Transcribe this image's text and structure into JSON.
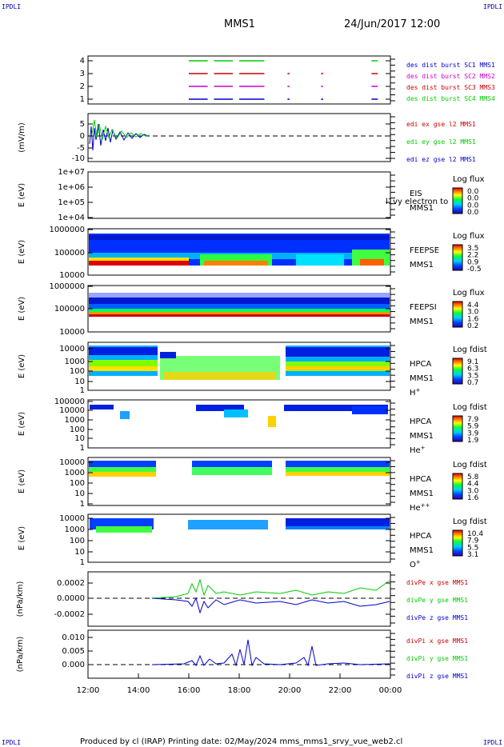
{
  "corner_labels": [
    "IPDLI",
    "IPDLI",
    "IPDLI",
    "IPDLI"
  ],
  "header": {
    "spacecraft": "MMS1",
    "datetime": "24/Jun/2017 12:00"
  },
  "footer": "Produced by cl (IRAP)   Printing date: 02/May/2024   mms_mms1_srvy_vue_web2.cl",
  "colors": {
    "blue": "#0000cc",
    "green": "#00cc00",
    "red": "#cc0000",
    "magenta": "#cc00cc"
  },
  "chart_data": [
    {
      "type": "line",
      "name": "burst-availability",
      "xlim": [
        "12:00",
        "24:00"
      ],
      "yticks": [
        "4",
        "3",
        "2",
        "1"
      ],
      "series": [
        {
          "name": "des dist burst SC1 MMS1",
          "color": "#0000cc",
          "level": 1,
          "intervals": [
            [
              "16:00",
              "16:45"
            ],
            [
              "17:00",
              "17:45"
            ],
            [
              "18:00",
              "19:00"
            ],
            [
              "19:55",
              "20:00"
            ],
            [
              "21:15",
              "21:20"
            ],
            [
              "23:15",
              "23:30"
            ]
          ]
        },
        {
          "name": "des dist burst SC2 MMS2",
          "color": "#cc00cc",
          "level": 2,
          "intervals": [
            [
              "16:00",
              "16:45"
            ],
            [
              "17:00",
              "17:45"
            ],
            [
              "18:00",
              "19:00"
            ],
            [
              "19:55",
              "20:00"
            ],
            [
              "21:15",
              "21:20"
            ],
            [
              "23:15",
              "23:30"
            ]
          ]
        },
        {
          "name": "des dist burst SC3 MMS3",
          "color": "#cc0000",
          "level": 3,
          "intervals": [
            [
              "16:00",
              "16:45"
            ],
            [
              "17:00",
              "17:45"
            ],
            [
              "18:00",
              "19:00"
            ],
            [
              "19:55",
              "20:00"
            ],
            [
              "21:15",
              "21:20"
            ],
            [
              "23:15",
              "23:30"
            ]
          ]
        },
        {
          "name": "des dist burst SC4 MMS4",
          "color": "#00cc00",
          "level": 4,
          "intervals": [
            [
              "16:00",
              "16:45"
            ],
            [
              "17:00",
              "17:45"
            ],
            [
              "18:00",
              "19:00"
            ],
            [
              "23:15",
              "23:30"
            ]
          ]
        }
      ]
    },
    {
      "type": "line",
      "name": "edi-e-field",
      "ylabel": "(mV/m)",
      "ylim": [
        -10,
        7
      ],
      "yticks": [
        "5",
        "0",
        "-5",
        "-10"
      ],
      "series": [
        {
          "name": "edi ex gse l2 MMS1",
          "color": "#cc0000"
        },
        {
          "name": "edi ey gse l2 MMS1",
          "color": "#00cc00"
        },
        {
          "name": "edi ez gse l2 MMS1",
          "color": "#0000cc"
        }
      ],
      "data_interval": [
        "12:00",
        "14:45"
      ]
    },
    {
      "type": "heatmap",
      "name": "eis",
      "ylabel": "E (eV)",
      "yticks": [
        "1e+07",
        "1e+06",
        "1e+05",
        "1e+04"
      ],
      "instrument": [
        "EIS",
        "MMS1"
      ],
      "overlay_text": "l1vy electron to",
      "colorbar": {
        "title": "Log flux",
        "ticks": [
          "0.0",
          "0.0",
          "0.0",
          "0.0"
        ]
      }
    },
    {
      "type": "heatmap",
      "name": "feepse",
      "ylabel": "E (eV)",
      "yticks": [
        "1000000",
        "100000",
        "10000"
      ],
      "instrument": [
        "FEEPSE",
        "MMS1"
      ],
      "colorbar": {
        "title": "Log flux",
        "ticks": [
          "3.5",
          "2.2",
          "0.9",
          "-0.5"
        ]
      }
    },
    {
      "type": "heatmap",
      "name": "feepsi",
      "ylabel": "E (eV)",
      "yticks": [
        "1000000",
        "100000",
        "10000"
      ],
      "instrument": [
        "FEEPSI",
        "MMS1"
      ],
      "colorbar": {
        "title": "Log flux",
        "ticks": [
          "4.4",
          "3.0",
          "1.6",
          "0.2"
        ]
      }
    },
    {
      "type": "heatmap",
      "name": "hpca-h",
      "ylabel": "E (eV)",
      "yticks": [
        "10000",
        "1000",
        "100",
        "10",
        "1"
      ],
      "instrument": [
        "HPCA",
        "MMS1",
        "H"
      ],
      "species_sup": "+",
      "colorbar": {
        "title": "Log fdist",
        "ticks": [
          "9.1",
          "6.3",
          "3.5",
          "0.7"
        ]
      }
    },
    {
      "type": "heatmap",
      "name": "hpca-he",
      "ylabel": "E (eV)",
      "yticks": [
        "100000",
        "10000",
        "1000",
        "100",
        "10",
        "1"
      ],
      "instrument": [
        "HPCA",
        "MMS1",
        "He"
      ],
      "species_sup": "+",
      "colorbar": {
        "title": "Log fdist",
        "ticks": [
          "7.9",
          "5.9",
          "3.9",
          "1.9"
        ]
      }
    },
    {
      "type": "heatmap",
      "name": "hpca-hepp",
      "ylabel": "E (eV)",
      "yticks": [
        "10000",
        "1000",
        "100",
        "10",
        "1"
      ],
      "instrument": [
        "HPCA",
        "MMS1",
        "He"
      ],
      "species_sup": "++",
      "colorbar": {
        "title": "Log fdist",
        "ticks": [
          "5.8",
          "4.4",
          "3.0",
          "1.6"
        ]
      }
    },
    {
      "type": "heatmap",
      "name": "hpca-o",
      "ylabel": "E (eV)",
      "yticks": [
        "10000",
        "1000",
        "100",
        "10",
        "1"
      ],
      "instrument": [
        "HPCA",
        "MMS1",
        "O"
      ],
      "species_sup": "+",
      "colorbar": {
        "title": "Log fdist",
        "ticks": [
          "10.4",
          "7.9",
          "5.5",
          "3.1"
        ]
      }
    },
    {
      "type": "line",
      "name": "divpe",
      "ylabel": "(nPa/km)",
      "ylim": [
        -0.0003,
        0.0003
      ],
      "yticks": [
        "0.0002",
        "0.0000",
        "-0.0002"
      ],
      "series": [
        {
          "name": "divPe x gse MMS1",
          "color": "#cc0000"
        },
        {
          "name": "divPe y gse MMS1",
          "color": "#00cc00"
        },
        {
          "name": "divPe z gse MMS1",
          "color": "#0000cc"
        }
      ],
      "data_interval": [
        "14:30",
        "24:00"
      ]
    },
    {
      "type": "line",
      "name": "divpi",
      "ylabel": "(nPa/km)",
      "ylim": [
        -0.003,
        0.012
      ],
      "yticks": [
        "0.010",
        "0.005",
        "0.000"
      ],
      "series": [
        {
          "name": "divPi x gse MMS1",
          "color": "#cc0000"
        },
        {
          "name": "divPi y gse MMS1",
          "color": "#00cc00"
        },
        {
          "name": "divPi z gse MMS1",
          "color": "#0000cc"
        }
      ],
      "data_interval": [
        "14:30",
        "24:00"
      ]
    }
  ],
  "xaxis": {
    "ticks": [
      "12:00",
      "14:00",
      "16:00",
      "18:00",
      "20:00",
      "22:00",
      "00:00"
    ]
  }
}
